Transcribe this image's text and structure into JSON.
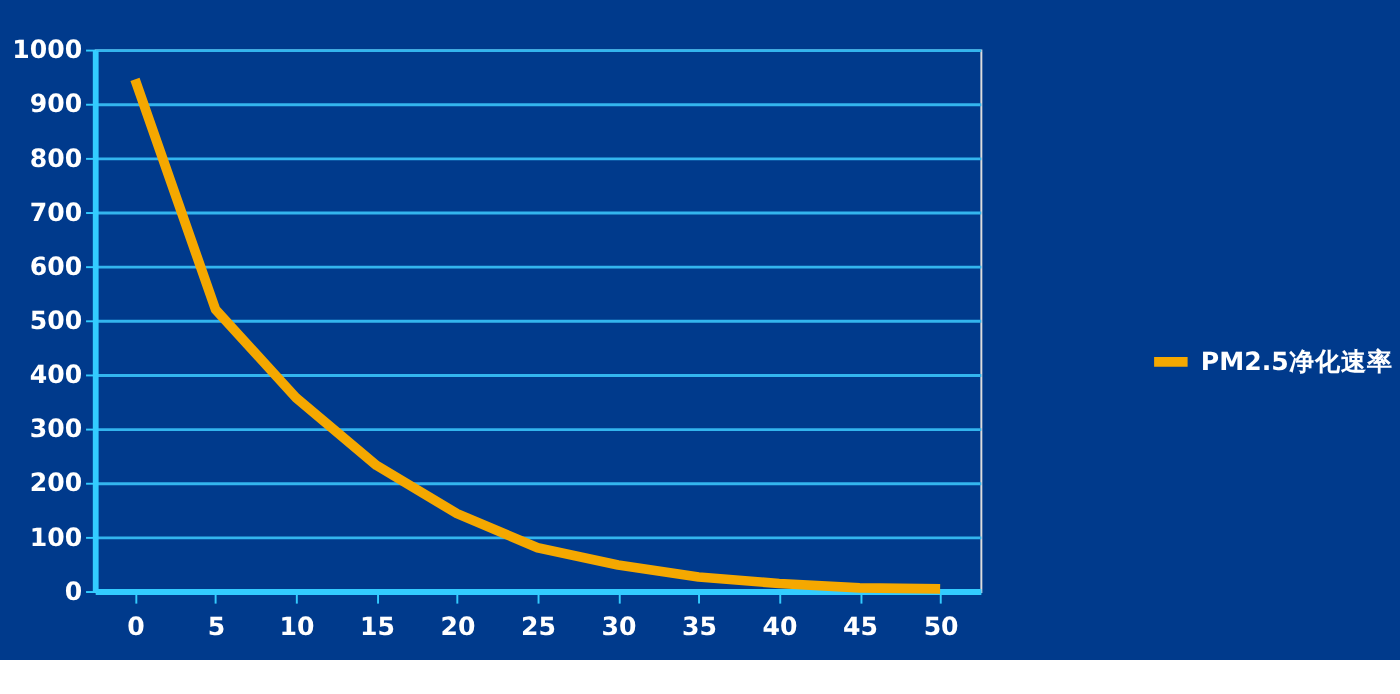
{
  "chart_data": {
    "type": "line",
    "categories": [
      "0",
      "5",
      "10",
      "15",
      "20",
      "25",
      "30",
      "35",
      "40",
      "45",
      "50"
    ],
    "series": [
      {
        "name": "PM2.5净化速率",
        "color": "#f5a800",
        "values": [
          945,
          520,
          357,
          232,
          143,
          80,
          48,
          26,
          14,
          6,
          4
        ]
      }
    ],
    "ylim": [
      0,
      1000
    ],
    "yticks": [
      0,
      100,
      200,
      300,
      400,
      500,
      600,
      700,
      800,
      900,
      1000
    ],
    "grid": "y",
    "legend": "right",
    "marker": "none",
    "line_style": "solid"
  }
}
